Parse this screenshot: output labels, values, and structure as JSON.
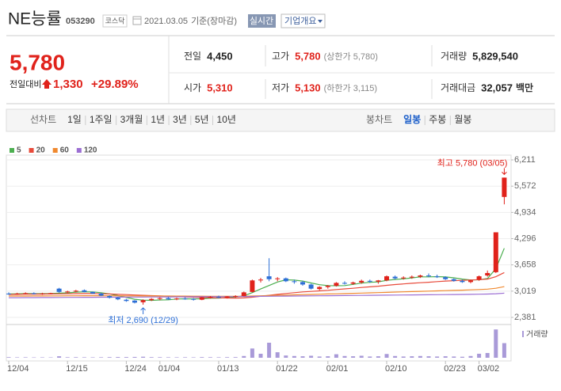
{
  "header": {
    "name": "NE능률",
    "code": "053290",
    "market": "코스닥",
    "date": "2021.03.05",
    "basis": "기준(장마감)",
    "realtime": "실시간",
    "company_info": "기업개요"
  },
  "quote": {
    "price": "5,780",
    "change_label": "전일대비",
    "change": "1,330",
    "change_pct": "+29.89%"
  },
  "summary": [
    {
      "label": "전일",
      "value": "4,450",
      "color": "#222222"
    },
    {
      "label": "고가",
      "value": "5,780",
      "note": "(상한가 5,780)",
      "color": "#e0221b"
    },
    {
      "label": "거래량",
      "value": "5,829,540",
      "color": "#222222"
    },
    {
      "label": "시가",
      "value": "5,310",
      "color": "#e0221b"
    },
    {
      "label": "저가",
      "value": "5,130",
      "note": "(하한가 3,115)",
      "color": "#e0221b"
    },
    {
      "label": "거래대금",
      "value": "32,057",
      "unit": "백만",
      "color": "#222222"
    }
  ],
  "periods": {
    "line_label": "선차트",
    "line": [
      "1일",
      "1주일",
      "3개월",
      "1년",
      "3년",
      "5년",
      "10년"
    ],
    "candle_label": "봉차트",
    "candle": [
      "일봉",
      "주봉",
      "월봉"
    ],
    "active_candle": 0
  },
  "chart_data": {
    "type": "candlestick",
    "categories": [
      "12/04",
      null,
      null,
      null,
      null,
      null,
      null,
      "12/15",
      null,
      null,
      null,
      null,
      null,
      null,
      "12/24",
      null,
      null,
      null,
      "01/04",
      null,
      null,
      null,
      null,
      null,
      null,
      "01/13",
      null,
      null,
      null,
      null,
      null,
      null,
      "01/22",
      null,
      null,
      null,
      null,
      null,
      "02/01",
      null,
      null,
      null,
      null,
      null,
      null,
      "02/10",
      null,
      null,
      null,
      null,
      null,
      null,
      "02/23",
      null,
      null,
      null,
      "03/02",
      null,
      null,
      null
    ],
    "open": [
      2960,
      2950,
      2960,
      2970,
      2950,
      2960,
      3080,
      3000,
      3010,
      3040,
      3000,
      2960,
      2900,
      2860,
      2810,
      2790,
      2750,
      2800,
      2830,
      2850,
      2830,
      2840,
      2830,
      2810,
      2870,
      2880,
      2860,
      2890,
      2900,
      3000,
      3280,
      3380,
      3320,
      3330,
      3260,
      3240,
      3180,
      3070,
      3120,
      3150,
      3220,
      3200,
      3230,
      3270,
      3250,
      3280,
      3370,
      3330,
      3350,
      3370,
      3400,
      3380,
      3360,
      3310,
      3270,
      3240,
      3300,
      3400,
      3480,
      5310
    ],
    "high": [
      2990,
      2980,
      2990,
      2990,
      2980,
      2980,
      3100,
      3030,
      3050,
      3060,
      3010,
      2980,
      2920,
      2880,
      2830,
      2800,
      2820,
      2850,
      2870,
      2880,
      2860,
      2870,
      2850,
      2880,
      2900,
      2910,
      2900,
      2920,
      3010,
      3300,
      3340,
      3820,
      3360,
      3350,
      3300,
      3270,
      3200,
      3140,
      3170,
      3240,
      3260,
      3250,
      3300,
      3300,
      3290,
      3400,
      3400,
      3380,
      3400,
      3420,
      3450,
      3420,
      3380,
      3330,
      3300,
      3300,
      3400,
      3520,
      4450,
      5780
    ],
    "low": [
      2930,
      2930,
      2940,
      2940,
      2930,
      2940,
      2980,
      2970,
      2990,
      2990,
      2950,
      2900,
      2840,
      2800,
      2760,
      2720,
      2690,
      2780,
      2800,
      2810,
      2800,
      2810,
      2790,
      2800,
      2840,
      2850,
      2840,
      2860,
      2890,
      2990,
      3230,
      3260,
      3260,
      3240,
      3200,
      3150,
      3060,
      3040,
      3080,
      3130,
      3180,
      3170,
      3200,
      3220,
      3200,
      3260,
      3300,
      3300,
      3320,
      3340,
      3360,
      3340,
      3290,
      3250,
      3220,
      3210,
      3270,
      3370,
      3460,
      5130
    ],
    "close": [
      2950,
      2960,
      2970,
      2950,
      2960,
      2970,
      3000,
      3010,
      3030,
      3000,
      2960,
      2910,
      2860,
      2820,
      2780,
      2740,
      2800,
      2830,
      2850,
      2820,
      2840,
      2830,
      2810,
      2870,
      2880,
      2860,
      2890,
      2900,
      2990,
      3280,
      3300,
      3310,
      3330,
      3260,
      3240,
      3180,
      3080,
      3120,
      3150,
      3220,
      3200,
      3230,
      3270,
      3250,
      3280,
      3380,
      3330,
      3350,
      3370,
      3400,
      3380,
      3360,
      3310,
      3270,
      3240,
      3280,
      3380,
      3460,
      4450,
      5780
    ],
    "volume": [
      250000,
      180000,
      200000,
      150000,
      170000,
      160000,
      600000,
      220000,
      240000,
      200000,
      180000,
      210000,
      260000,
      300000,
      280000,
      330000,
      420000,
      250000,
      230000,
      200000,
      190000,
      210000,
      180000,
      260000,
      230000,
      200000,
      240000,
      260000,
      700000,
      3700000,
      1600000,
      6000000,
      2200000,
      900000,
      700000,
      600000,
      800000,
      500000,
      600000,
      1400000,
      700000,
      600000,
      800000,
      500000,
      600000,
      1500000,
      700000,
      500000,
      600000,
      700000,
      600000,
      500000,
      600000,
      500000,
      400000,
      700000,
      1600000,
      1900000,
      11300000,
      5829540
    ],
    "up_color": "#e0221b",
    "down_color": "#2d6fd6",
    "volume_color": "#a99ad8",
    "volume_label": "거래량",
    "volume_ylim": [
      0,
      12000000
    ],
    "ylim": [
      2381,
      6211
    ],
    "yticks": [
      {
        "value": 2381,
        "label": "2,381"
      },
      {
        "value": 3019,
        "label": "3,019"
      },
      {
        "value": 3658,
        "label": "3,658"
      },
      {
        "value": 4296,
        "label": "4,296"
      },
      {
        "value": 4934,
        "label": "4,934"
      },
      {
        "value": 5572,
        "label": "5,572"
      },
      {
        "value": 6211,
        "label": "6,211"
      }
    ],
    "grid": true,
    "high_label": "최고 5,780 (03/05)",
    "low_label": "최저 2,690 (12/29)",
    "ma": [
      {
        "name": "5",
        "color": "#4caf50",
        "values": [
          2950,
          2955,
          2960,
          2958,
          2958,
          2962,
          2970,
          2978,
          2994,
          3002,
          3000,
          2982,
          2952,
          2910,
          2866,
          2822,
          2800,
          2794,
          2804,
          2808,
          2828,
          2834,
          2830,
          2834,
          2846,
          2850,
          2862,
          2880,
          2904,
          2984,
          3072,
          3156,
          3242,
          3296,
          3288,
          3264,
          3218,
          3176,
          3154,
          3150,
          3154,
          3184,
          3214,
          3234,
          3246,
          3282,
          3302,
          3318,
          3342,
          3366,
          3366,
          3372,
          3364,
          3344,
          3312,
          3292,
          3296,
          3326,
          3566,
          4062
        ]
      },
      {
        "name": "20",
        "color": "#e84a3a",
        "values": [
          2940,
          2942,
          2944,
          2946,
          2948,
          2950,
          2952,
          2955,
          2958,
          2960,
          2960,
          2955,
          2950,
          2942,
          2935,
          2925,
          2918,
          2910,
          2902,
          2895,
          2888,
          2880,
          2872,
          2866,
          2860,
          2856,
          2852,
          2850,
          2855,
          2872,
          2894,
          2918,
          2942,
          2962,
          2982,
          3000,
          3012,
          3026,
          3040,
          3058,
          3074,
          3090,
          3108,
          3124,
          3140,
          3160,
          3180,
          3196,
          3210,
          3224,
          3236,
          3250,
          3264,
          3274,
          3282,
          3290,
          3300,
          3312,
          3370,
          3470
        ]
      },
      {
        "name": "60",
        "color": "#f0892f",
        "values": [
          2900,
          2900,
          2901,
          2902,
          2903,
          2904,
          2905,
          2906,
          2907,
          2908,
          2908,
          2908,
          2907,
          2906,
          2905,
          2904,
          2903,
          2902,
          2901,
          2900,
          2899,
          2898,
          2897,
          2896,
          2895,
          2894,
          2893,
          2893,
          2895,
          2900,
          2906,
          2912,
          2918,
          2924,
          2930,
          2935,
          2940,
          2945,
          2950,
          2955,
          2960,
          2966,
          2972,
          2978,
          2984,
          2990,
          2996,
          3002,
          3008,
          3014,
          3020,
          3026,
          3032,
          3038,
          3044,
          3050,
          3058,
          3068,
          3090,
          3130
        ]
      },
      {
        "name": "120",
        "color": "#9c6fd3",
        "values": [
          2860,
          2861,
          2862,
          2863,
          2864,
          2865,
          2866,
          2867,
          2868,
          2869,
          2870,
          2871,
          2872,
          2873,
          2874,
          2875,
          2876,
          2877,
          2878,
          2879,
          2880,
          2881,
          2882,
          2883,
          2884,
          2885,
          2886,
          2887,
          2888,
          2890,
          2892,
          2894,
          2896,
          2898,
          2900,
          2902,
          2904,
          2906,
          2908,
          2910,
          2912,
          2914,
          2916,
          2918,
          2920,
          2922,
          2924,
          2926,
          2928,
          2930,
          2932,
          2934,
          2936,
          2938,
          2940,
          2942,
          2944,
          2948,
          2956,
          2970
        ]
      }
    ]
  }
}
